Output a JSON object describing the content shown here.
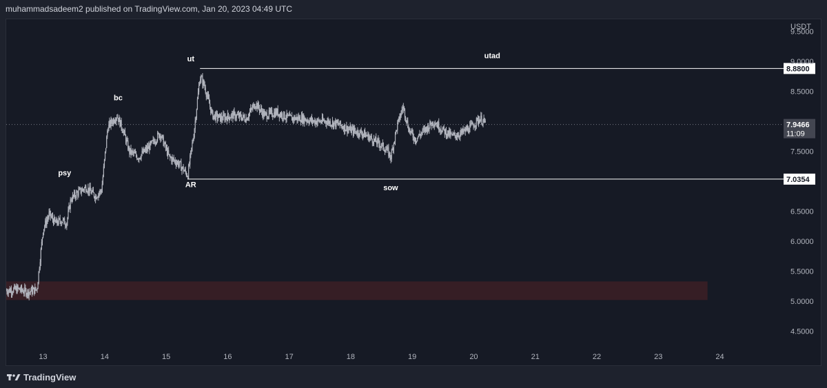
{
  "header": {
    "publisher_text": "muhammadsadeem2 published on TradingView.com, Jan 20, 2023 04:49 UTC"
  },
  "footer": {
    "brand": "TradingView"
  },
  "colors": {
    "background": "#161a25",
    "candles": "#b2b5be",
    "level_line": "#ffffff",
    "zone_fill": "#3a1f26",
    "price_badge": "#434651"
  },
  "chart_data": {
    "type": "candlestick",
    "currency_label": "USDT",
    "ylim": [
      4.3,
      9.7
    ],
    "xlim": [
      12.4,
      24.7
    ],
    "y_ticks": [
      "4.5000",
      "5.0000",
      "5.5000",
      "6.0000",
      "6.5000",
      "7.5000",
      "8.5000",
      "9.0000",
      "9.5000"
    ],
    "x_ticks": [
      "13",
      "14",
      "15",
      "16",
      "17",
      "18",
      "19",
      "20",
      "21",
      "22",
      "23",
      "24"
    ],
    "levels": [
      {
        "label": "8.8800",
        "value": 8.88,
        "x_start": 15.55,
        "x_end": 24.7
      },
      {
        "label": "7.0354",
        "value": 7.0354,
        "x_start": 15.35,
        "x_end": 24.7
      }
    ],
    "current_price": {
      "value": 7.9466,
      "label": "7.9466",
      "countdown": "11:09"
    },
    "zone": {
      "x_start": 12.4,
      "x_end": 23.8,
      "y_low": 5.02,
      "y_high": 5.33
    },
    "annotations": [
      {
        "text": "psy",
        "x": 13.35,
        "y": 7.1
      },
      {
        "text": "bc",
        "x": 14.22,
        "y": 8.35
      },
      {
        "text": "ut",
        "x": 15.4,
        "y": 9.0
      },
      {
        "text": "AR",
        "x": 15.4,
        "y": 6.9
      },
      {
        "text": "utad",
        "x": 20.3,
        "y": 9.05
      },
      {
        "text": "sow",
        "x": 18.65,
        "y": 6.85
      }
    ],
    "anchors": [
      [
        12.4,
        5.18
      ],
      [
        12.6,
        5.2
      ],
      [
        12.75,
        5.15
      ],
      [
        12.9,
        5.2
      ],
      [
        13.0,
        6.2
      ],
      [
        13.1,
        6.45
      ],
      [
        13.2,
        6.3
      ],
      [
        13.3,
        6.35
      ],
      [
        13.38,
        6.3
      ],
      [
        13.45,
        6.7
      ],
      [
        13.55,
        6.8
      ],
      [
        13.7,
        6.9
      ],
      [
        13.85,
        6.75
      ],
      [
        13.95,
        6.85
      ],
      [
        14.05,
        7.9
      ],
      [
        14.2,
        8.1
      ],
      [
        14.3,
        7.85
      ],
      [
        14.4,
        7.5
      ],
      [
        14.55,
        7.4
      ],
      [
        14.75,
        7.6
      ],
      [
        14.9,
        7.8
      ],
      [
        15.05,
        7.4
      ],
      [
        15.2,
        7.3
      ],
      [
        15.35,
        7.1
      ],
      [
        15.45,
        7.8
      ],
      [
        15.55,
        8.75
      ],
      [
        15.62,
        8.6
      ],
      [
        15.75,
        8.1
      ],
      [
        15.9,
        8.05
      ],
      [
        16.1,
        8.1
      ],
      [
        16.3,
        8.05
      ],
      [
        16.45,
        8.3
      ],
      [
        16.6,
        8.1
      ],
      [
        16.8,
        8.15
      ],
      [
        17.0,
        8.05
      ],
      [
        17.2,
        8.05
      ],
      [
        17.4,
        8.0
      ],
      [
        17.6,
        8.0
      ],
      [
        17.8,
        7.95
      ],
      [
        18.0,
        7.85
      ],
      [
        18.2,
        7.8
      ],
      [
        18.35,
        7.7
      ],
      [
        18.5,
        7.6
      ],
      [
        18.6,
        7.5
      ],
      [
        18.65,
        7.4
      ],
      [
        18.75,
        7.9
      ],
      [
        18.85,
        8.25
      ],
      [
        18.95,
        7.85
      ],
      [
        19.05,
        7.7
      ],
      [
        19.2,
        7.85
      ],
      [
        19.35,
        8.0
      ],
      [
        19.5,
        7.85
      ],
      [
        19.65,
        7.75
      ],
      [
        19.8,
        7.8
      ],
      [
        19.95,
        7.9
      ],
      [
        20.05,
        8.0
      ],
      [
        20.1,
        8.05
      ],
      [
        20.2,
        7.95
      ]
    ]
  }
}
